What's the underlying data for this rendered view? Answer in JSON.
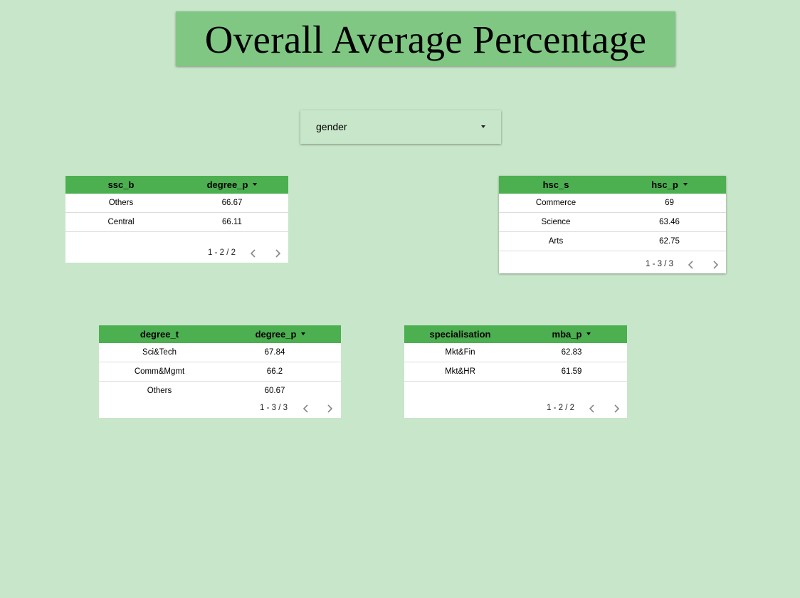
{
  "title": "Overall Average Percentage",
  "dropdown": {
    "value": "gender"
  },
  "tables": {
    "ssc": {
      "headers": [
        "ssc_b",
        "degree_p"
      ],
      "rows": [
        [
          "Others",
          "66.67"
        ],
        [
          "Central",
          "66.11"
        ]
      ],
      "pagination": "1 - 2 / 2"
    },
    "hsc": {
      "headers": [
        "hsc_s",
        "hsc_p"
      ],
      "rows": [
        [
          "Commerce",
          "69"
        ],
        [
          "Science",
          "63.46"
        ],
        [
          "Arts",
          "62.75"
        ]
      ],
      "pagination": "1 - 3 / 3"
    },
    "degree": {
      "headers": [
        "degree_t",
        "degree_p"
      ],
      "rows": [
        [
          "Sci&Tech",
          "67.84"
        ],
        [
          "Comm&Mgmt",
          "66.2"
        ],
        [
          "Others",
          "60.67"
        ]
      ],
      "pagination": "1 - 3 / 3"
    },
    "mba": {
      "headers": [
        "specialisation",
        "mba_p"
      ],
      "rows": [
        [
          "Mkt&Fin",
          "62.83"
        ],
        [
          "Mkt&HR",
          "61.59"
        ]
      ],
      "pagination": "1 - 2 / 2"
    }
  },
  "colors": {
    "background": "#c8e6c9",
    "title_banner": "#81c784",
    "table_header": "#4caf50",
    "table_body": "#ffffff"
  },
  "icons": {
    "dropdown": "caret-down-icon",
    "sort": "sort-desc-icon",
    "prev": "chevron-left-icon",
    "next": "chevron-right-icon"
  }
}
